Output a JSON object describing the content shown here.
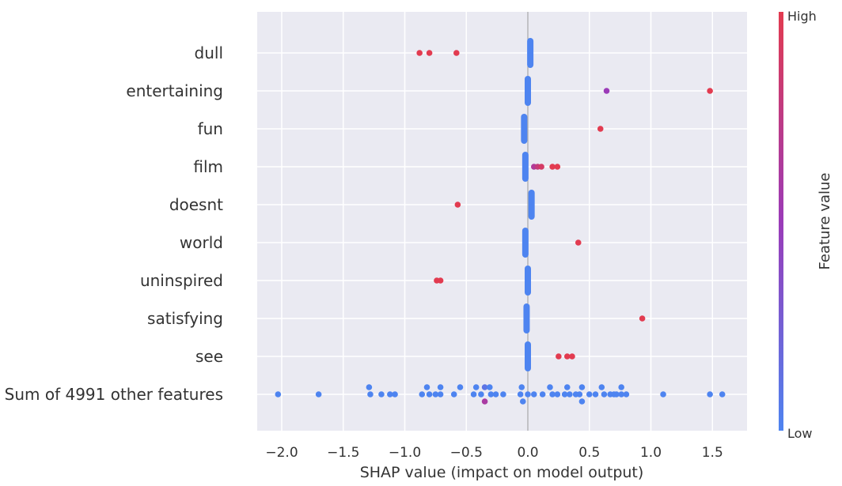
{
  "chart_data": {
    "type": "scatter",
    "subtype": "shap-beeswarm",
    "xlabel": "SHAP value (impact on model output)",
    "xlim": [
      -2.2,
      1.75
    ],
    "x_ticks": [
      -2.0,
      -1.5,
      -1.0,
      -0.5,
      0.0,
      0.5,
      1.0,
      1.5
    ],
    "x_tick_labels": [
      "−2.0",
      "−1.5",
      "−1.0",
      "−0.5",
      "0.0",
      "0.5",
      "1.0",
      "1.5"
    ],
    "grid": true,
    "colorbar": {
      "high_label": "High",
      "low_label": "Low",
      "title": "Feature value",
      "low_color": "#4e84f0",
      "high_color": "#e23b50"
    },
    "colors": {
      "low": "#4e84f0",
      "mid": "#a52aa0",
      "high": "#e23b50",
      "background": "#eaeaf2",
      "grid": "#ffffff"
    },
    "features": [
      {
        "name": "dull",
        "points": [
          [
            0.02,
            0
          ],
          [
            -0.88,
            1
          ],
          [
            -0.8,
            1
          ],
          [
            -0.58,
            1
          ]
        ],
        "cluster": {
          "x": 0.02,
          "color": "low"
        }
      },
      {
        "name": "entertaining",
        "points": [
          [
            0.64,
            0.5
          ],
          [
            1.48,
            1
          ]
        ],
        "cluster": {
          "x": 0.0,
          "color": "low"
        }
      },
      {
        "name": "fun",
        "points": [
          [
            0.59,
            1
          ]
        ],
        "cluster": {
          "x": -0.03,
          "color": "low"
        }
      },
      {
        "name": "film",
        "points": [
          [
            0.05,
            0.65
          ],
          [
            0.08,
            0.8
          ],
          [
            0.11,
            0.9
          ],
          [
            0.2,
            1
          ],
          [
            0.24,
            1
          ]
        ],
        "cluster": {
          "x": -0.02,
          "color": "low"
        }
      },
      {
        "name": "doesnt",
        "points": [
          [
            -0.57,
            1
          ]
        ],
        "cluster": {
          "x": 0.03,
          "color": "low"
        }
      },
      {
        "name": "world",
        "points": [
          [
            0.41,
            1
          ]
        ],
        "cluster": {
          "x": -0.02,
          "color": "low"
        }
      },
      {
        "name": "uninspired",
        "points": [
          [
            -0.74,
            1
          ],
          [
            -0.71,
            1
          ]
        ],
        "cluster": {
          "x": 0.0,
          "color": "low"
        }
      },
      {
        "name": "satisfying",
        "points": [
          [
            0.93,
            1
          ]
        ],
        "cluster": {
          "x": -0.01,
          "color": "low"
        }
      },
      {
        "name": "see",
        "points": [
          [
            0.25,
            1
          ],
          [
            0.32,
            1
          ],
          [
            0.36,
            1
          ]
        ],
        "cluster": {
          "x": 0.0,
          "color": "low"
        }
      },
      {
        "name": "Sum of 4991 other features",
        "points": [
          [
            -2.03,
            0,
            0
          ],
          [
            -1.7,
            0,
            0
          ],
          [
            -1.29,
            0,
            -1
          ],
          [
            -1.28,
            0,
            0
          ],
          [
            -1.19,
            0,
            0
          ],
          [
            -1.12,
            0,
            0
          ],
          [
            -1.08,
            0,
            0
          ],
          [
            -0.86,
            0,
            0
          ],
          [
            -0.82,
            0,
            -1
          ],
          [
            -0.8,
            0,
            0
          ],
          [
            -0.75,
            0,
            0
          ],
          [
            -0.71,
            0,
            -1
          ],
          [
            -0.71,
            0,
            0
          ],
          [
            -0.6,
            0,
            0
          ],
          [
            -0.55,
            0,
            -1
          ],
          [
            -0.44,
            0,
            0
          ],
          [
            -0.42,
            0,
            -1
          ],
          [
            -0.38,
            0,
            0
          ],
          [
            -0.35,
            0.1,
            -1
          ],
          [
            -0.35,
            0.6,
            1
          ],
          [
            -0.31,
            0,
            -1
          ],
          [
            -0.3,
            0,
            0
          ],
          [
            -0.26,
            0,
            0
          ],
          [
            -0.2,
            0,
            0
          ],
          [
            -0.06,
            0,
            0
          ],
          [
            -0.05,
            0,
            -1
          ],
          [
            -0.04,
            0,
            1
          ],
          [
            0.0,
            0,
            0
          ],
          [
            0.05,
            0,
            0
          ],
          [
            0.12,
            0,
            0
          ],
          [
            0.18,
            0,
            -1
          ],
          [
            0.2,
            0,
            0
          ],
          [
            0.24,
            0,
            0
          ],
          [
            0.3,
            0,
            0
          ],
          [
            0.32,
            0,
            -1
          ],
          [
            0.34,
            0,
            0
          ],
          [
            0.39,
            0,
            0
          ],
          [
            0.42,
            0,
            0
          ],
          [
            0.44,
            0,
            -1
          ],
          [
            0.44,
            0,
            1
          ],
          [
            0.5,
            0,
            0
          ],
          [
            0.55,
            0,
            0
          ],
          [
            0.6,
            0,
            -1
          ],
          [
            0.62,
            0,
            0
          ],
          [
            0.67,
            0,
            0
          ],
          [
            0.7,
            0,
            0
          ],
          [
            0.72,
            0,
            0
          ],
          [
            0.76,
            0,
            -1
          ],
          [
            0.76,
            0,
            0
          ],
          [
            0.8,
            0,
            0
          ],
          [
            1.1,
            0,
            0
          ],
          [
            1.48,
            0,
            0
          ],
          [
            1.58,
            0,
            0
          ]
        ],
        "cluster": null
      }
    ]
  }
}
